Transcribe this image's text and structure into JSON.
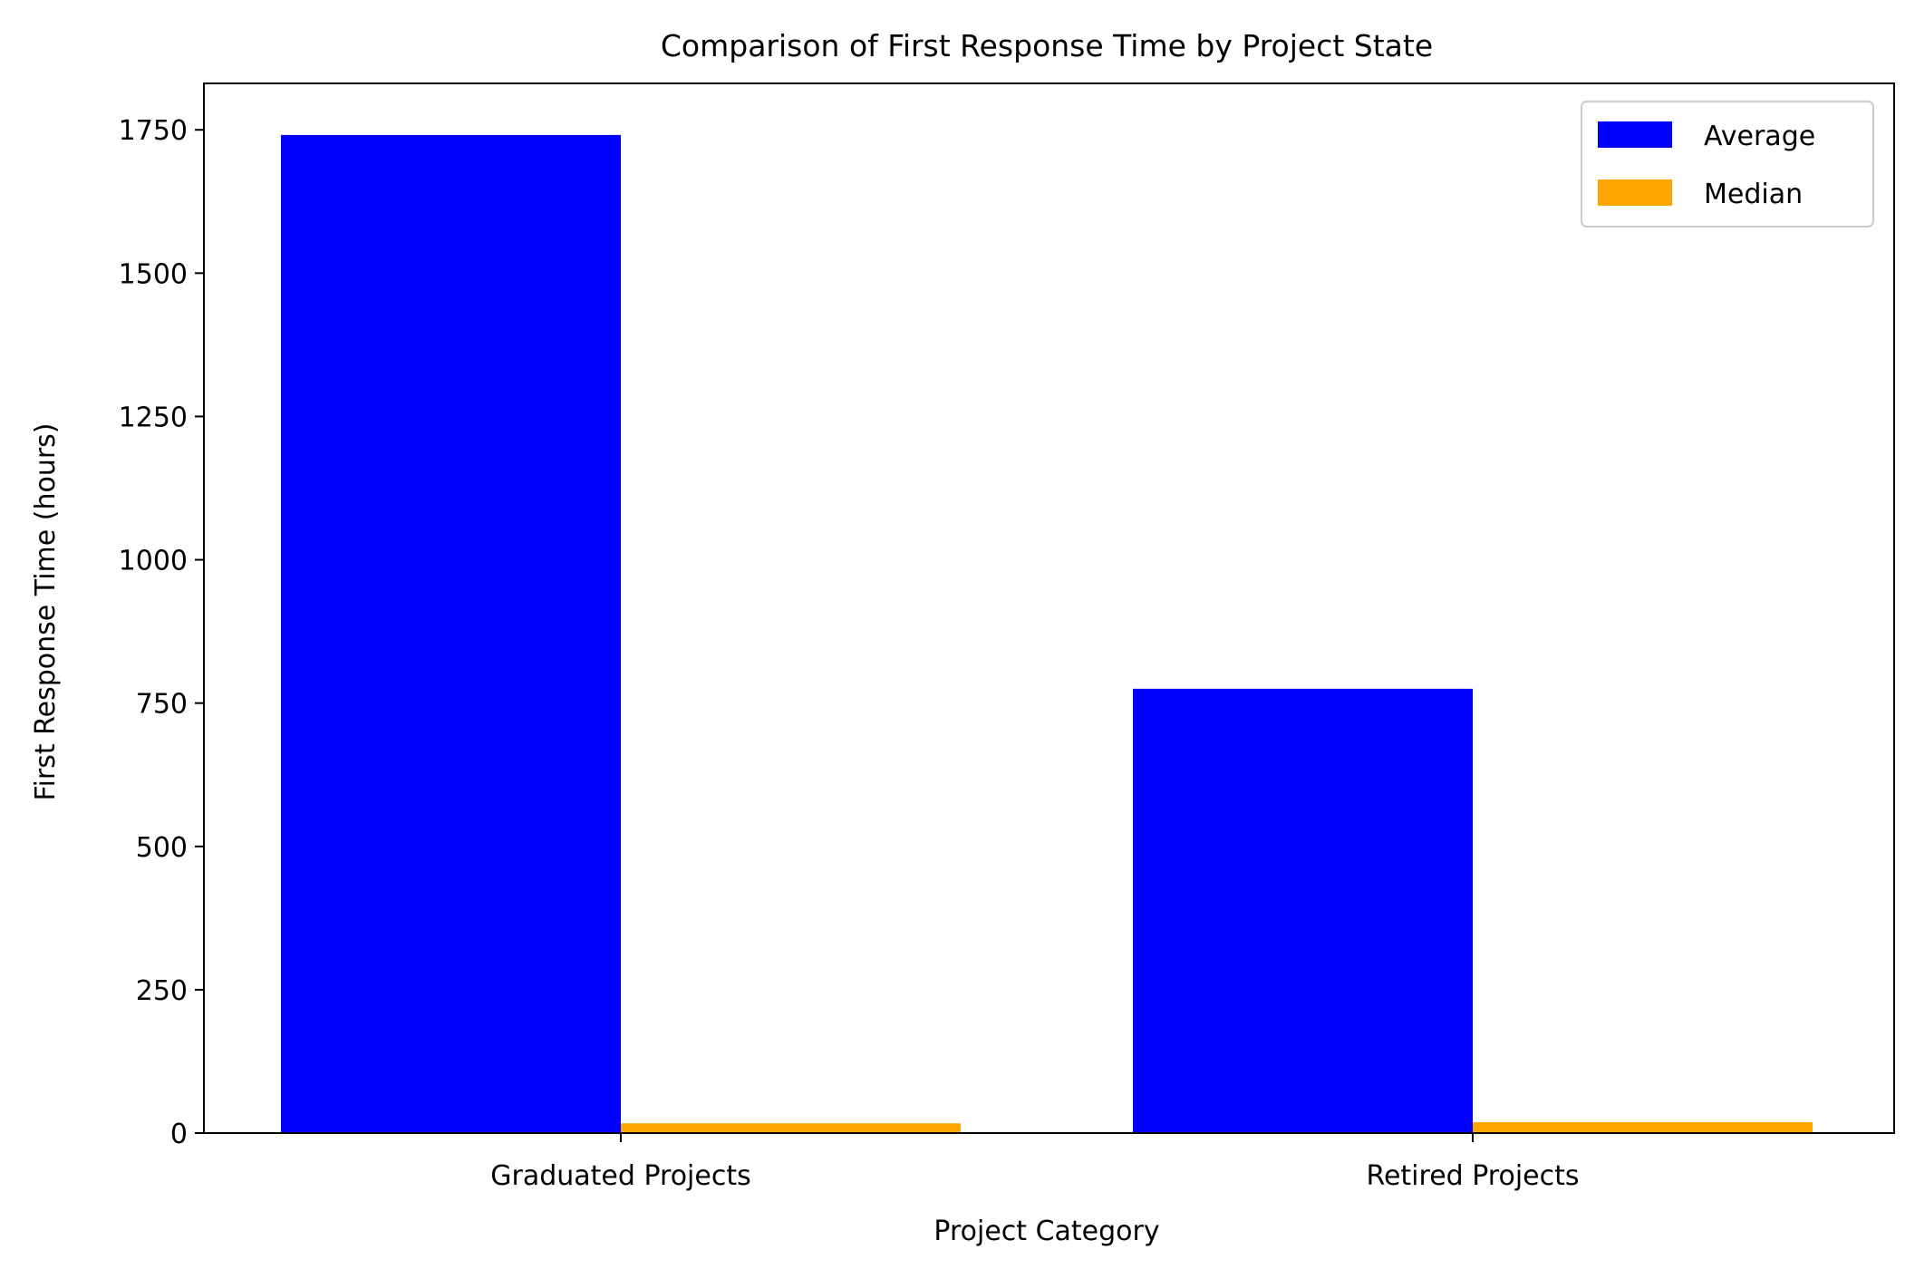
{
  "chart_data": {
    "type": "bar",
    "title": "Comparison of First Response Time by Project State",
    "xlabel": "Project Category",
    "ylabel": "First Response Time (hours)",
    "categories": [
      "Graduated Projects",
      "Retired Projects"
    ],
    "series": [
      {
        "name": "Average",
        "values": [
          1741,
          775
        ],
        "color": "#0000ff"
      },
      {
        "name": "Median",
        "values": [
          17,
          19
        ],
        "color": "#ffa500"
      }
    ],
    "ylim": [
      0,
      1831
    ],
    "yticks": [
      0,
      250,
      500,
      750,
      1000,
      1250,
      1500,
      1750
    ],
    "grid": false,
    "legend_position": "top-right"
  }
}
